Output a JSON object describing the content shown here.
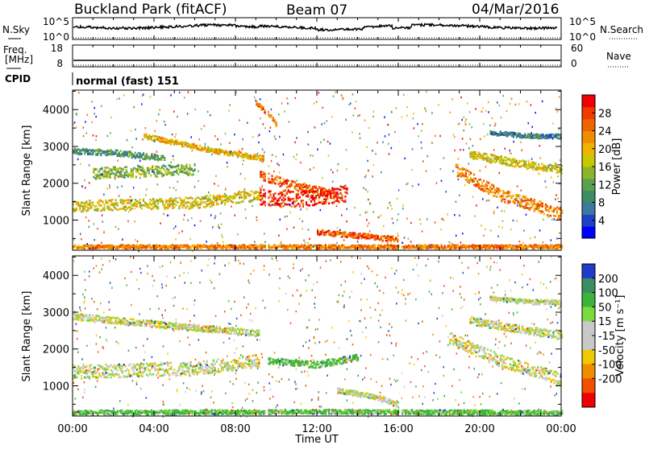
{
  "header": {
    "station": "Buckland Park (fitACF)",
    "beam": "Beam 07",
    "date": "04/Mar/2016"
  },
  "noise_panel": {
    "left_label": "N.Sky",
    "left_ticks": [
      "10^5",
      "10^0"
    ],
    "right_ticks": [
      "10^5",
      "10^0"
    ],
    "right_label": "N.Search"
  },
  "freq_panel": {
    "left_label_1": "Freq.",
    "left_label_2": "[MHz]",
    "left_ticks": [
      "18",
      "8"
    ],
    "right_ticks": [
      "60",
      "0"
    ],
    "right_label": "Nave"
  },
  "cpid_panel": {
    "label": "CPID",
    "value": "normal (fast) 151"
  },
  "chart_data": [
    {
      "type": "heatmap",
      "quantity": "Power",
      "ylabel": "Slant Range [km]",
      "xlabel": "Time UT",
      "x_ticks": [
        "00:00",
        "04:00",
        "08:00",
        "12:00",
        "16:00",
        "20:00",
        "00:00"
      ],
      "x_range_hours": [
        0,
        24
      ],
      "y_ticks": [
        1000,
        2000,
        3000,
        4000
      ],
      "ylim": [
        180,
        4530
      ],
      "colorbar": {
        "label": "Power [dB]",
        "ticks": [
          4,
          8,
          12,
          16,
          20,
          24,
          28
        ],
        "range": [
          0,
          32
        ],
        "colors": [
          "#0000ff",
          "#2040c8",
          "#3c78a0",
          "#3c8c64",
          "#5aa050",
          "#8cb428",
          "#c8c800",
          "#f0b400",
          "#f08c00",
          "#f06400",
          "#f03c00",
          "#f00000"
        ]
      },
      "bands": [
        {
          "t": [
            0,
            6,
            9.2
          ],
          "r": [
            1400,
            1500,
            1700
          ],
          "w": 150,
          "v": 18
        },
        {
          "t": [
            0,
            2,
            4.5
          ],
          "r": [
            2900,
            2850,
            2700
          ],
          "w": 80,
          "v": 10
        },
        {
          "t": [
            1,
            4,
            6
          ],
          "r": [
            2300,
            2350,
            2400
          ],
          "w": 150,
          "v": 14
        },
        {
          "t": [
            3.5,
            7,
            9.4
          ],
          "r": [
            3300,
            2900,
            2700
          ],
          "w": 70,
          "v": 20
        },
        {
          "t": [
            9.2,
            10.5,
            13
          ],
          "r": [
            2250,
            2000,
            1700
          ],
          "w": 120,
          "v": 26
        },
        {
          "t": [
            9.2,
            11,
            13.5
          ],
          "r": [
            1650,
            1600,
            1750
          ],
          "w": 220,
          "v": 30
        },
        {
          "t": [
            12,
            14,
            16
          ],
          "r": [
            700,
            600,
            500
          ],
          "w": 70,
          "v": 26
        },
        {
          "t": [
            0,
            8,
            24
          ],
          "r": [
            300,
            300,
            300
          ],
          "w": 50,
          "v": 24
        },
        {
          "t": [
            18.8,
            21,
            24
          ],
          "r": [
            2400,
            1700,
            1200
          ],
          "w": 160,
          "v": 24
        },
        {
          "t": [
            19.5,
            22,
            24
          ],
          "r": [
            2800,
            2550,
            2400
          ],
          "w": 110,
          "v": 18
        },
        {
          "t": [
            20.5,
            22.5,
            24
          ],
          "r": [
            3400,
            3300,
            3300
          ],
          "w": 60,
          "v": 8
        },
        {
          "t": [
            9,
            9.6,
            10
          ],
          "r": [
            4200,
            3900,
            3600
          ],
          "w": 60,
          "v": 25
        }
      ]
    },
    {
      "type": "heatmap",
      "quantity": "Velocity",
      "ylabel": "Slant Range [km]",
      "xlabel": "Time UT",
      "x_ticks": [
        "00:00",
        "04:00",
        "08:00",
        "12:00",
        "16:00",
        "20:00",
        "00:00"
      ],
      "x_range_hours": [
        0,
        24
      ],
      "y_ticks": [
        1000,
        2000,
        3000,
        4000
      ],
      "ylim": [
        180,
        4530
      ],
      "colorbar": {
        "label": "Velocity [m s⁻¹]",
        "ticks": [
          200,
          100,
          50,
          15,
          -15,
          -50,
          -100,
          -200
        ],
        "colors": [
          "#1e3cc8",
          "#3c8c64",
          "#3cb43c",
          "#78dc3c",
          "#c8c8c8",
          "#c8c8c8",
          "#f0c800",
          "#f08c00",
          "#f05000",
          "#f00000"
        ]
      },
      "bands": [
        {
          "t": [
            0,
            6,
            9.2
          ],
          "r": [
            1400,
            1500,
            1700
          ],
          "w": 180,
          "v": 0
        },
        {
          "t": [
            0,
            4,
            9.2
          ],
          "r": [
            2900,
            2700,
            2450
          ],
          "w": 90,
          "v": 0
        },
        {
          "t": [
            9.5,
            12,
            14
          ],
          "r": [
            1700,
            1600,
            1800
          ],
          "w": 90,
          "v": 40
        },
        {
          "t": [
            13,
            15,
            16
          ],
          "r": [
            900,
            700,
            500
          ],
          "w": 70,
          "v": 0
        },
        {
          "t": [
            0,
            12,
            24
          ],
          "r": [
            300,
            320,
            300
          ],
          "w": 60,
          "v": 40
        },
        {
          "t": [
            18.5,
            21,
            24
          ],
          "r": [
            2300,
            1700,
            1200
          ],
          "w": 170,
          "v": 0
        },
        {
          "t": [
            19.5,
            22,
            24
          ],
          "r": [
            2800,
            2550,
            2400
          ],
          "w": 110,
          "v": 0
        },
        {
          "t": [
            20.5,
            22.5,
            24
          ],
          "r": [
            3400,
            3300,
            3300
          ],
          "w": 60,
          "v": 0
        }
      ]
    }
  ]
}
